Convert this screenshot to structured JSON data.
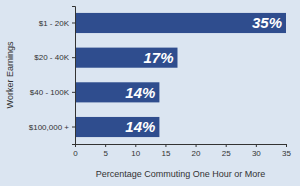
{
  "chart_data": {
    "type": "bar",
    "orientation": "horizontal",
    "categories": [
      "$1 - 20K",
      "$20 - 40K",
      "$40 - 100K",
      "$100,000 +"
    ],
    "values": [
      35,
      17,
      14,
      14
    ],
    "value_labels": [
      "35%",
      "17%",
      "14%",
      "14%"
    ],
    "data_labels": true,
    "color": "#2f4d8e",
    "xlabel": "Percentage Commuting One Hour or More",
    "ylabel": "Worker Earnings",
    "xlim": [
      0,
      35
    ],
    "xticks": [
      0,
      5,
      10,
      15,
      20,
      25,
      30,
      35
    ],
    "grid": false
  }
}
